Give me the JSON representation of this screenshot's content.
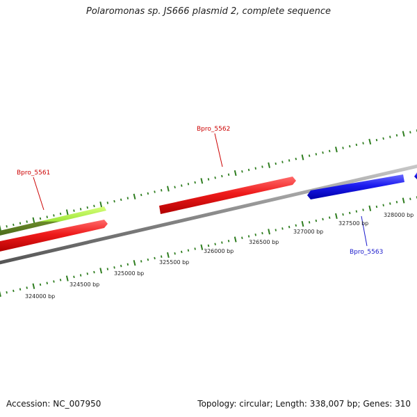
{
  "title": "Polaromonas sp. JS666 plasmid 2, complete sequence",
  "footer": {
    "accession": "Accession: NC_007950",
    "summary": "Topology: circular; Length: 338,007 bp; Genes: 310"
  },
  "colors": {
    "backbone": "#8a8a8a",
    "tick": "#2e7d1f",
    "forward_gene": "#e8141c",
    "reverse_gene": "#1414e0",
    "other_gene": "#9ee63a",
    "label_forward": "#cc0000",
    "label_reverse": "#1a1acc"
  },
  "scale_labels": [
    "324000 bp",
    "324500 bp",
    "325000 bp",
    "325500 bp",
    "326000 bp",
    "326500 bp",
    "327000 bp",
    "327500 bp",
    "328000 bp"
  ],
  "gene_labels": [
    {
      "name": "Bpro_5561",
      "strand": "forward"
    },
    {
      "name": "Bpro_5562",
      "strand": "forward"
    },
    {
      "name": "Bpro_5563",
      "strand": "reverse"
    }
  ]
}
